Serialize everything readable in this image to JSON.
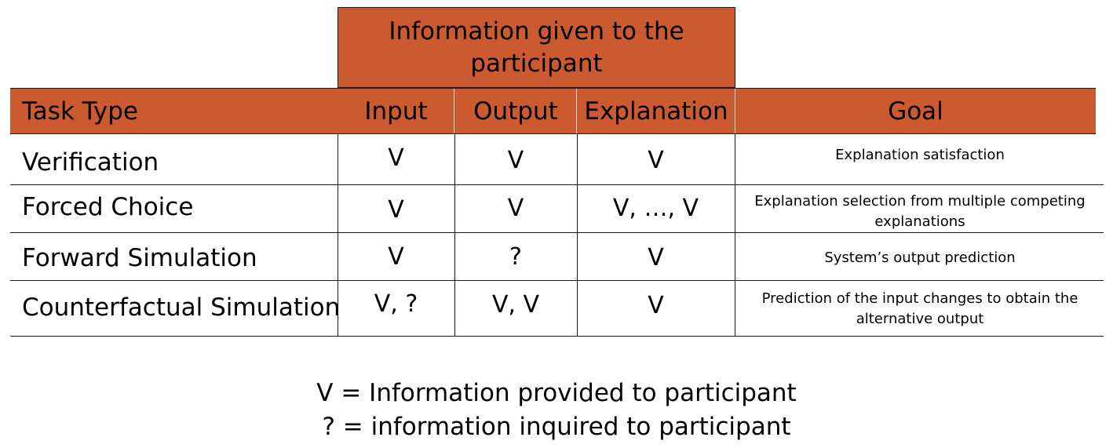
{
  "table": {
    "super_header": "Information given to the participant",
    "headers": {
      "task_type": "Task Type",
      "input": "Input",
      "output": "Output",
      "explanation": "Explanation",
      "goal": "Goal"
    },
    "rows": [
      {
        "task": "Verification",
        "input": "V",
        "output": "V",
        "explanation": "V",
        "goal": "Explanation satisfaction"
      },
      {
        "task": "Forced Choice",
        "input": "V",
        "output": "V",
        "explanation": "V, …, V",
        "goal": "Explanation selection from multiple competing explanations"
      },
      {
        "task": "Forward Simulation",
        "input": "V",
        "output": "?",
        "explanation": "V",
        "goal": "System’s output prediction"
      },
      {
        "task": "Counterfactual Simulation",
        "input": "V, ?",
        "output": "V, V",
        "explanation": "V",
        "goal": "Prediction of the input changes to obtain the alternative output"
      }
    ]
  },
  "legend": {
    "line1": "V = Information provided to participant",
    "line2": "? = information inquired to participant"
  },
  "colors": {
    "header_fill": "#cc5a30",
    "rule": "#1a1a1a"
  }
}
